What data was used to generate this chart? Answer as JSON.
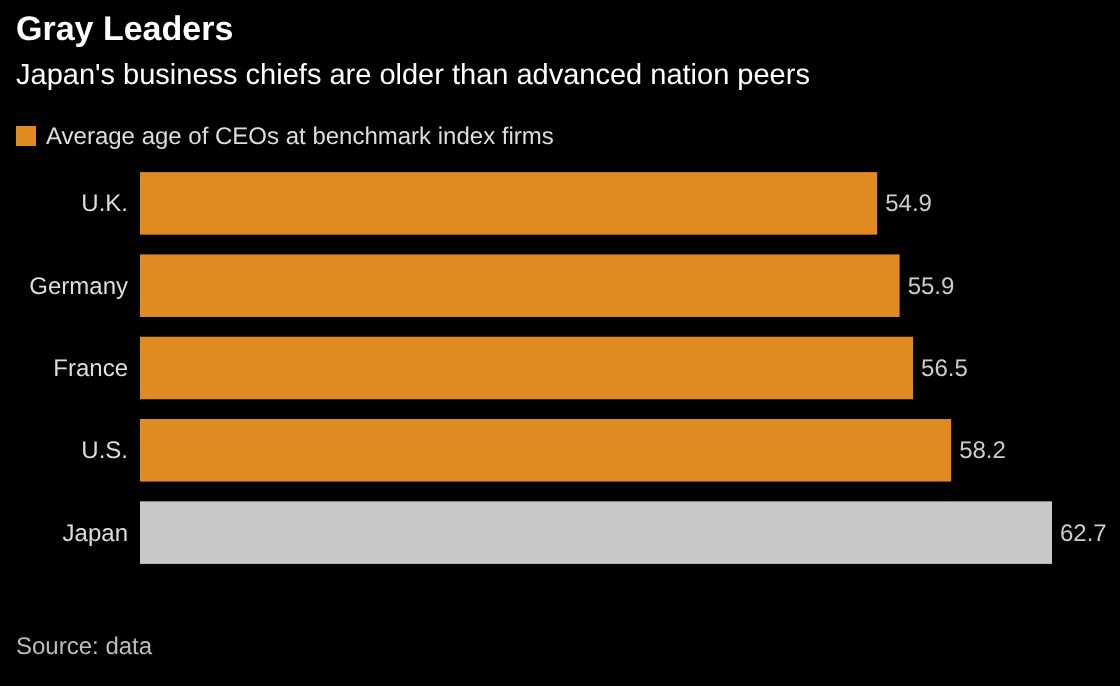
{
  "chart_data": {
    "type": "bar",
    "orientation": "horizontal",
    "title": "Gray Leaders",
    "subtitle": "Japan's business chiefs are older than advanced nation peers",
    "categories": [
      "U.K.",
      "Germany",
      "France",
      "U.S.",
      "Japan"
    ],
    "series": [
      {
        "name": "Average age of CEOs at benchmark index firms",
        "color": "#e08a22",
        "values": [
          54.9,
          55.9,
          56.5,
          58.2,
          62.7
        ],
        "colors": [
          "#e08a22",
          "#e08a22",
          "#e08a22",
          "#e08a22",
          "#c8c8c8"
        ]
      }
    ],
    "xlim": [
      22,
      62.7
    ],
    "tick_labels": "y",
    "data_labels": true,
    "legend": "top left",
    "annotations": [
      "Source: data"
    ]
  }
}
